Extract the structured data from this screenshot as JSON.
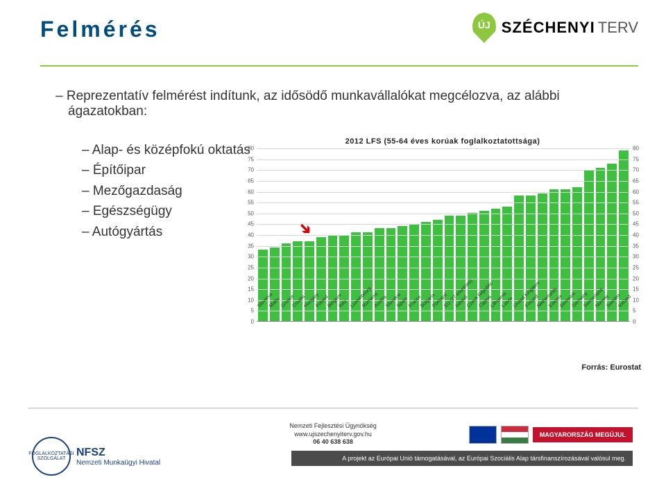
{
  "header": {
    "title": "Felmérés",
    "logo_pin": "ÚJ",
    "logo_main": "SZÉCHENYI",
    "logo_sub": "TERV"
  },
  "intro": "– Reprezentatív felmérést indítunk, az idősödő munkavállalókat megcélozva, az alábbi ágazatokban:",
  "sublist": [
    "– Alap- és középfokú oktatás",
    "– Építőipar",
    "– Mezőgazdaság",
    "– Egészségügy",
    "– Autógyártás"
  ],
  "chart": {
    "type": "bar",
    "title": "2012 LFS (55-64 éves korúak foglalkoztatottsága)",
    "ylim": [
      0,
      80
    ],
    "ytick_step": 5,
    "grid_color": "#d6d6d6",
    "bar_color": "#3fbf3f",
    "arrow_color": "#d40000",
    "arrow_index": 4,
    "categories": [
      "Slovenia",
      "Malta",
      "Greece",
      "Croatia",
      "Hungary",
      "Poland",
      "Belgium",
      "Italy",
      "Luxembourg",
      "Romania",
      "Austria",
      "Slovakia",
      "Spain",
      "France",
      "Bulgaria",
      "Portugal",
      "EU (27 countries)",
      "Ireland",
      "Czech Republic",
      "Cyprus",
      "Lithuania",
      "Latvia",
      "United Kingdom",
      "Finland",
      "Netherlands",
      "Estonia",
      "Denmark",
      "Germany",
      "Switzerland",
      "Norway",
      "Sweden",
      "Iceland"
    ],
    "values": [
      33,
      34,
      36,
      37,
      37,
      39,
      40,
      40,
      41,
      41,
      43,
      43,
      44,
      45,
      46,
      47,
      49,
      49,
      50,
      51,
      52,
      53,
      58,
      58,
      59,
      61,
      61,
      62,
      70,
      71,
      73,
      79
    ],
    "source": "Forrás: Eurostat"
  },
  "footer": {
    "nfsz_abbr": "NFSZ",
    "nfsz_full": "Nemzeti Munkaügyi Hivatal",
    "center1": "Nemzeti Fejlesztési Ügynökség",
    "center2": "www.ujszechenyiterv.gov.hu",
    "center3": "06 40 638 638",
    "badge": "MAGYARORSZÁG MEGÚJUL",
    "note": "A projekt az Európai Unió támogatásával, az Európai Szociális Alap társfinanszírozásával valósul meg."
  }
}
